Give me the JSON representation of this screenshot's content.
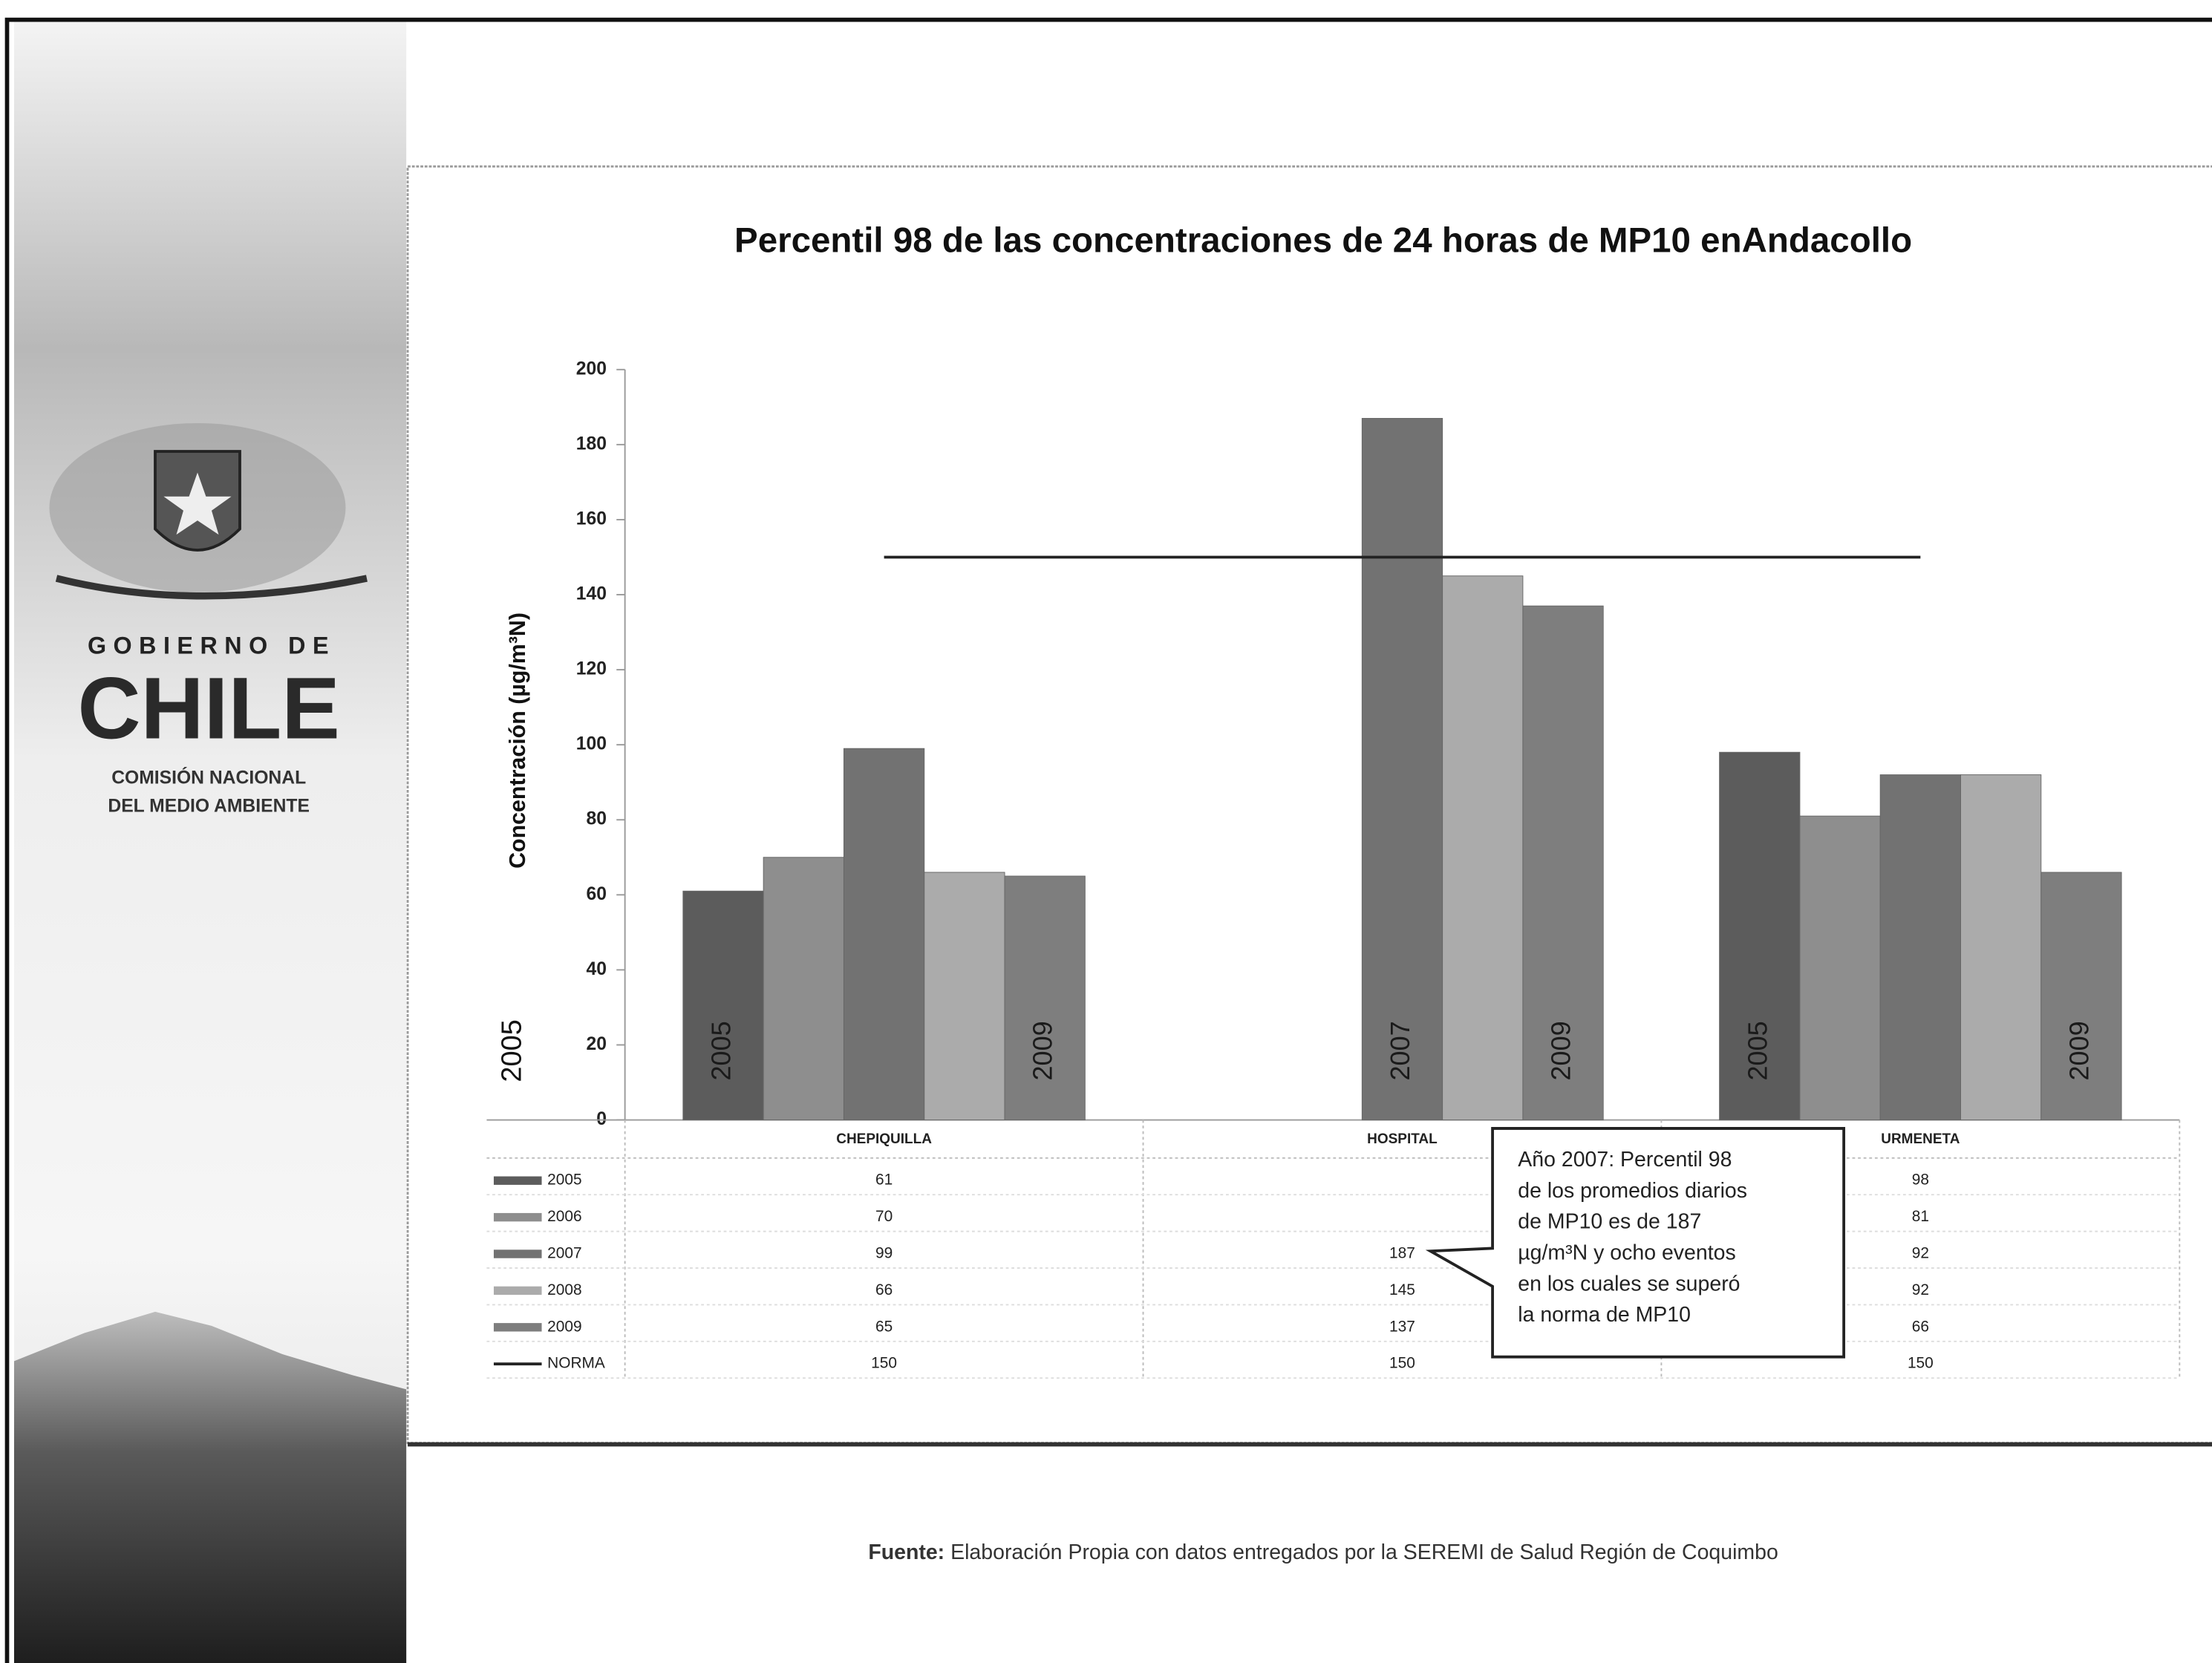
{
  "logo": {
    "line1": "GOBIERNO DE",
    "line2": "CHILE",
    "line3": "COMISIÓN NACIONAL",
    "line4": "DEL MEDIO AMBIENTE"
  },
  "chart_data": {
    "type": "bar",
    "title": "Percentil 98 de las concentraciones de 24 horas de MP10 enAndacollo",
    "y_label": "Concentración (µg/m³N)",
    "categories": [
      "CHEPIQUILLA",
      "HOSPITAL",
      "URMENETA"
    ],
    "series": [
      {
        "name": "2005",
        "color": "#5c5c5c",
        "values": [
          61,
          null,
          98
        ]
      },
      {
        "name": "2006",
        "color": "#8e8e8e",
        "values": [
          70,
          null,
          81
        ]
      },
      {
        "name": "2007",
        "color": "#727272",
        "values": [
          99,
          187,
          92
        ]
      },
      {
        "name": "2008",
        "color": "#ababab",
        "values": [
          66,
          145,
          92
        ]
      },
      {
        "name": "2009",
        "color": "#7e7e7e",
        "values": [
          65,
          137,
          66
        ]
      },
      {
        "name": "NORMA",
        "color": "#222222",
        "type": "line",
        "values": [
          150,
          150,
          150
        ]
      }
    ],
    "ylim": [
      0,
      200
    ],
    "yticks": [
      0,
      20,
      40,
      60,
      80,
      100,
      120,
      140,
      160,
      180,
      200
    ],
    "grid": false,
    "callout": [
      "Año 2007: Percentil 98",
      "de los promedios diarios",
      "de MP10 es de 187",
      "µg/m³N y ocho eventos",
      "en los cuales se superó",
      "la norma de MP10"
    ]
  },
  "source": {
    "label": "Fuente:",
    "text": "Elaboración Propia con datos entregados por la SEREMI de Salud Región de Coquimbo"
  }
}
